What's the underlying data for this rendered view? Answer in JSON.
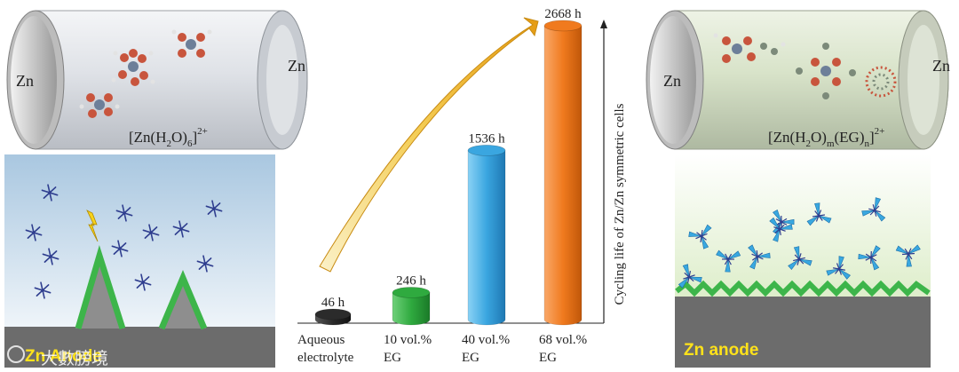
{
  "left_cell": {
    "electrode_left": "Zn",
    "electrode_right": "Zn",
    "complex_main": "[Zn(H",
    "complex_sub1": "2",
    "complex_mid": "O)",
    "complex_sub2": "6",
    "complex_end": "]",
    "complex_charge": "2+"
  },
  "right_cell": {
    "electrode_left": "Zn",
    "electrode_right": "Zn",
    "complex_a": "[Zn(H",
    "complex_sub1": "2",
    "complex_b": "O)",
    "complex_sub_m": "m",
    "complex_c": "(EG)",
    "complex_sub_n": "n",
    "complex_d": "]",
    "complex_charge": "2+"
  },
  "left_panel": {
    "anode_label": "Zn Anode",
    "watermark": "大數膀境"
  },
  "right_panel": {
    "anode_label": "Zn anode"
  },
  "chart_data": {
    "type": "bar",
    "ylabel": "Cycling life of Zn/Zn symmetric cells",
    "unit": "h",
    "categories": [
      [
        "Aqueous",
        "electrolyte"
      ],
      [
        "10 vol.%",
        "EG"
      ],
      [
        "40 vol.%",
        "EG"
      ],
      [
        "68 vol.%",
        "EG"
      ]
    ],
    "values": [
      46,
      246,
      1536,
      2668
    ],
    "value_labels": [
      "46 h",
      "246 h",
      "1536 h",
      "2668 h"
    ],
    "colors": [
      "#2b2b2b",
      "#2faa3f",
      "#3aa6e0",
      "#f07a1e"
    ]
  }
}
